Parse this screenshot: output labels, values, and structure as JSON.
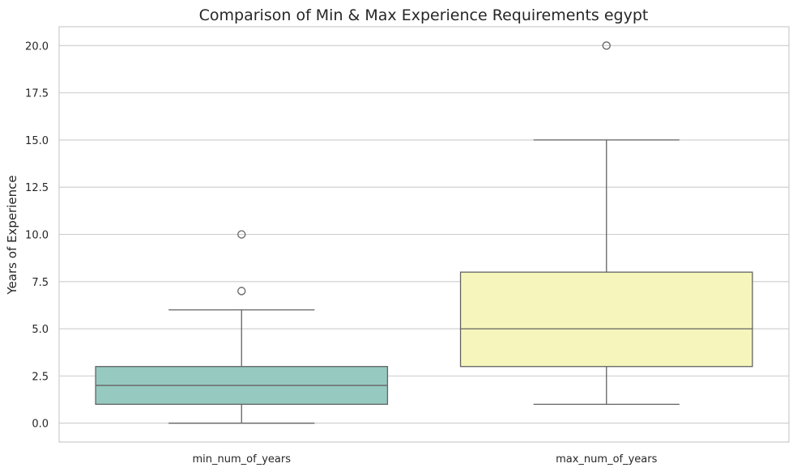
{
  "chart_data": {
    "type": "box",
    "title": "Comparison of Min & Max Experience Requirements egypt",
    "xlabel": "",
    "ylabel": "Years of Experience",
    "ylim": [
      -1.0,
      21.0
    ],
    "yticks": [
      0.0,
      2.5,
      5.0,
      7.5,
      10.0,
      12.5,
      15.0,
      17.5,
      20.0
    ],
    "ytick_labels": [
      "0.0",
      "2.5",
      "5.0",
      "7.5",
      "10.0",
      "12.5",
      "15.0",
      "17.5",
      "20.0"
    ],
    "grid": "horizontal",
    "categories": [
      "min_num_of_years",
      "max_num_of_years"
    ],
    "boxes": [
      {
        "category": "min_num_of_years",
        "whisker_low": 0,
        "q1": 1,
        "median": 2,
        "q3": 3,
        "whisker_high": 6,
        "outliers": [
          7,
          10
        ],
        "color": "#96cac1"
      },
      {
        "category": "max_num_of_years",
        "whisker_low": 1,
        "q1": 3,
        "median": 5,
        "q3": 8,
        "whisker_high": 15,
        "outliers": [
          20
        ],
        "color": "#f6f6bc"
      }
    ],
    "line_color": "#636363",
    "grid_color": "#cccccc"
  }
}
